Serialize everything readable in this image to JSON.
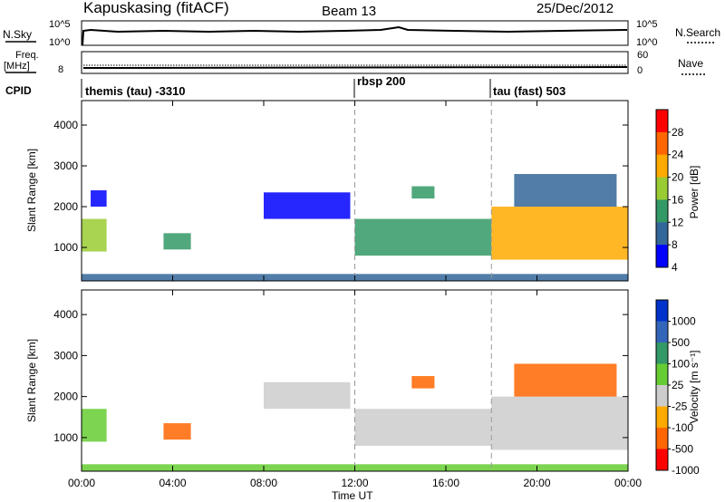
{
  "header": {
    "station": "Kapuskasing (fitACF)",
    "beam": "Beam 13",
    "date": "25/Dec/2012"
  },
  "summary_panels": {
    "nsky_label": "N.Sky",
    "nsearch_label": "N.Search",
    "nsky_ticks": [
      "10^5",
      "10^0"
    ],
    "nsearch_ticks": [
      "10^5",
      "10^0"
    ],
    "freq_label_1": "Freq.",
    "freq_label_2": "[MHz]",
    "freq_tick": "8",
    "nave_label": "Nave",
    "nave_ticks": [
      "60",
      "0"
    ],
    "cpid_label": "CPID"
  },
  "cpid_segments": [
    {
      "label": "themis (tau) -3310",
      "start": 0,
      "end": 12
    },
    {
      "label": "rbsp 200",
      "start": 12,
      "end": 18
    },
    {
      "label": "tau (fast) 503",
      "start": 18,
      "end": 24
    }
  ],
  "x_tick_labels": [
    "00:00",
    "04:00",
    "08:00",
    "12:00",
    "16:00",
    "20:00",
    "00:00"
  ],
  "x_axis_label": "Time UT",
  "power_colorbar": {
    "label": "Power [dB]",
    "ticks": [
      "28",
      "24",
      "20",
      "16",
      "12",
      "8",
      "4"
    ],
    "colors": [
      "#ff0000",
      "#ff6600",
      "#ffaa00",
      "#99cc33",
      "#339966",
      "#336699",
      "#0000ff"
    ]
  },
  "velocity_colorbar": {
    "label": "Velocity [m s⁻¹]",
    "ticks": [
      "1000",
      "500",
      "100",
      "25",
      "-25",
      "-100",
      "-500",
      "-1000"
    ],
    "colors": [
      "#0033cc",
      "#3366bb",
      "#339966",
      "#66cc33",
      "#cccccc",
      "#ffaa00",
      "#ff6600",
      "#ff0000"
    ]
  },
  "chart_data": [
    {
      "type": "heatmap",
      "name": "power",
      "ylabel": "Slant Range [km]",
      "xlim": [
        0,
        24
      ],
      "ylim": [
        180,
        4600
      ],
      "y_ticks": [
        1000,
        2000,
        3000,
        4000
      ],
      "x_ticks_hours": [
        0,
        4,
        8,
        12,
        16,
        20,
        24
      ],
      "mode_boundaries_hours": [
        12,
        18
      ],
      "echo_regions": [
        {
          "t0": 0.0,
          "t1": 1.1,
          "r0": 900,
          "r1": 1700,
          "value": 16
        },
        {
          "t0": 0.4,
          "t1": 1.1,
          "r0": 2000,
          "r1": 2400,
          "value": 6
        },
        {
          "t0": 3.6,
          "t1": 4.8,
          "r0": 950,
          "r1": 1350,
          "value": 14
        },
        {
          "t0": 8.0,
          "t1": 11.8,
          "r0": 1700,
          "r1": 2350,
          "value": 6
        },
        {
          "t0": 12.0,
          "t1": 18.0,
          "r0": 800,
          "r1": 1700,
          "value": 12
        },
        {
          "t0": 14.5,
          "t1": 15.5,
          "r0": 2200,
          "r1": 2500,
          "value": 14
        },
        {
          "t0": 18.0,
          "t1": 24.0,
          "r0": 700,
          "r1": 2000,
          "value": 20
        },
        {
          "t0": 19.0,
          "t1": 23.5,
          "r0": 2000,
          "r1": 2800,
          "value": 10
        },
        {
          "t0": 0.0,
          "t1": 24.0,
          "r0": 180,
          "r1": 350,
          "value": 8
        }
      ]
    },
    {
      "type": "heatmap",
      "name": "velocity",
      "ylabel": "Slant Range [km]",
      "xlim": [
        0,
        24
      ],
      "ylim": [
        180,
        4600
      ],
      "y_ticks": [
        1000,
        2000,
        3000,
        4000
      ],
      "x_ticks_hours": [
        0,
        4,
        8,
        12,
        16,
        20,
        24
      ],
      "mode_boundaries_hours": [
        12,
        18
      ],
      "echo_regions": [
        {
          "t0": 0.0,
          "t1": 1.1,
          "r0": 900,
          "r1": 1700,
          "value": 100
        },
        {
          "t0": 3.6,
          "t1": 4.8,
          "r0": 950,
          "r1": 1350,
          "value": -100
        },
        {
          "t0": 8.0,
          "t1": 11.8,
          "r0": 1700,
          "r1": 2350,
          "value": 0
        },
        {
          "t0": 12.0,
          "t1": 18.0,
          "r0": 800,
          "r1": 1700,
          "value": 0
        },
        {
          "t0": 14.5,
          "t1": 15.5,
          "r0": 2200,
          "r1": 2500,
          "value": -300
        },
        {
          "t0": 18.0,
          "t1": 24.0,
          "r0": 700,
          "r1": 2000,
          "value": 0
        },
        {
          "t0": 19.0,
          "t1": 23.5,
          "r0": 2000,
          "r1": 2800,
          "value": -200
        },
        {
          "t0": 0.0,
          "t1": 24.0,
          "r0": 180,
          "r1": 350,
          "value": 50
        }
      ]
    }
  ]
}
